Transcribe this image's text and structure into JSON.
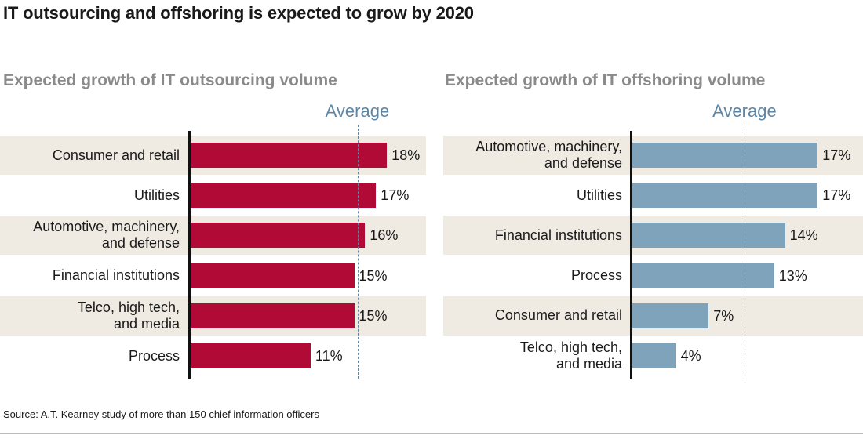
{
  "title": "IT outsourcing and offshoring is expected to grow by 2020",
  "source": "Source: A.T. Kearney study of more than 150 chief information officers",
  "chart_data": [
    {
      "type": "bar",
      "orientation": "horizontal",
      "title": "Expected growth of IT outsourcing volume",
      "average_label": "Average",
      "average_value": 15.3,
      "bar_color": "#b20a36",
      "xlim": [
        0,
        25
      ],
      "categories": [
        "Consumer and retail",
        "Utilities",
        "Automotive, machinery,\nand defense",
        "Financial institutions",
        "Telco, high tech,\nand media",
        "Process"
      ],
      "values": [
        18,
        17,
        16,
        15,
        15,
        11
      ],
      "value_labels": [
        "18%",
        "17%",
        "16%",
        "15%",
        "15%",
        "11%"
      ]
    },
    {
      "type": "bar",
      "orientation": "horizontal",
      "title": "Expected growth of IT offshoring volume",
      "average_label": "Average",
      "average_value": 10.3,
      "bar_color": "#7fa3bb",
      "xlim": [
        0,
        25
      ],
      "categories": [
        "Automotive, machinery,\nand defense",
        "Utilities",
        "Financial institutions",
        "Process",
        "Consumer and retail",
        "Telco, high tech,\nand media"
      ],
      "values": [
        17,
        17,
        14,
        13,
        7,
        4
      ],
      "value_labels": [
        "17%",
        "17%",
        "14%",
        "13%",
        "7%",
        "4%"
      ]
    }
  ]
}
